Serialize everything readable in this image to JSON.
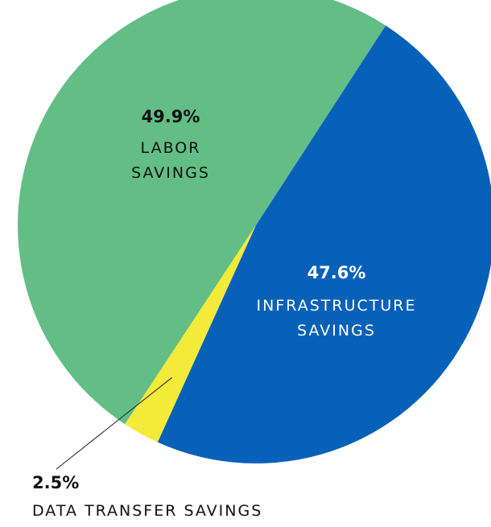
{
  "chart_data": {
    "type": "pie",
    "slices": [
      {
        "label": "LABOR SAVINGS",
        "value": 49.9,
        "display": "49.9%",
        "color": "#62be85",
        "label_lines": [
          "LABOR",
          "SAVINGS"
        ],
        "text_color": "#111111"
      },
      {
        "label": "INFRASTRUCTURE SAVINGS",
        "value": 47.6,
        "display": "47.6%",
        "color": "#0761b9",
        "label_lines": [
          "INFRASTRUCTURE",
          "SAVINGS"
        ],
        "text_color": "#ffffff"
      },
      {
        "label": "DATA TRANSFER SAVINGS",
        "value": 2.5,
        "display": "2.5%",
        "color": "#f4ea3a",
        "label_lines": [
          "DATA TRANSFER SAVINGS"
        ],
        "text_color": "#111111"
      }
    ],
    "legend": "none",
    "grid": false
  }
}
